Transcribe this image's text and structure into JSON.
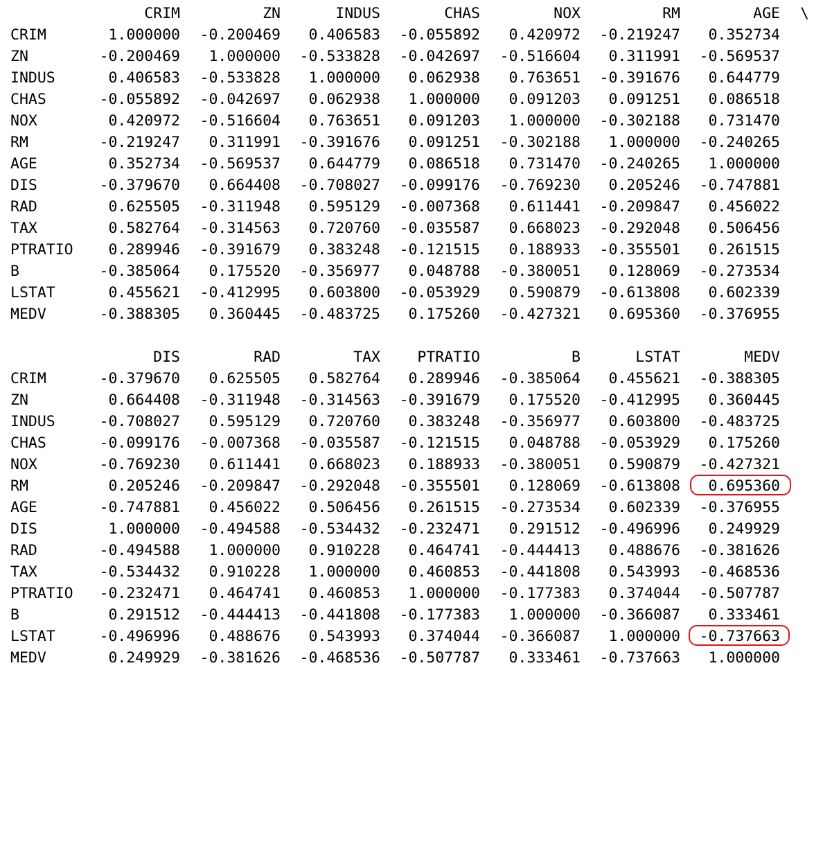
{
  "continuation_mark": "\\",
  "tables": [
    {
      "columns": [
        "CRIM",
        "ZN",
        "INDUS",
        "CHAS",
        "NOX",
        "RM",
        "AGE"
      ],
      "rows": [
        {
          "label": "CRIM",
          "values": [
            "1.000000",
            "-0.200469",
            "0.406583",
            "-0.055892",
            "0.420972",
            "-0.219247",
            "0.352734"
          ]
        },
        {
          "label": "ZN",
          "values": [
            "-0.200469",
            "1.000000",
            "-0.533828",
            "-0.042697",
            "-0.516604",
            "0.311991",
            "-0.569537"
          ]
        },
        {
          "label": "INDUS",
          "values": [
            "0.406583",
            "-0.533828",
            "1.000000",
            "0.062938",
            "0.763651",
            "-0.391676",
            "0.644779"
          ]
        },
        {
          "label": "CHAS",
          "values": [
            "-0.055892",
            "-0.042697",
            "0.062938",
            "1.000000",
            "0.091203",
            "0.091251",
            "0.086518"
          ]
        },
        {
          "label": "NOX",
          "values": [
            "0.420972",
            "-0.516604",
            "0.763651",
            "0.091203",
            "1.000000",
            "-0.302188",
            "0.731470"
          ]
        },
        {
          "label": "RM",
          "values": [
            "-0.219247",
            "0.311991",
            "-0.391676",
            "0.091251",
            "-0.302188",
            "1.000000",
            "-0.240265"
          ]
        },
        {
          "label": "AGE",
          "values": [
            "0.352734",
            "-0.569537",
            "0.644779",
            "0.086518",
            "0.731470",
            "-0.240265",
            "1.000000"
          ]
        },
        {
          "label": "DIS",
          "values": [
            "-0.379670",
            "0.664408",
            "-0.708027",
            "-0.099176",
            "-0.769230",
            "0.205246",
            "-0.747881"
          ]
        },
        {
          "label": "RAD",
          "values": [
            "0.625505",
            "-0.311948",
            "0.595129",
            "-0.007368",
            "0.611441",
            "-0.209847",
            "0.456022"
          ]
        },
        {
          "label": "TAX",
          "values": [
            "0.582764",
            "-0.314563",
            "0.720760",
            "-0.035587",
            "0.668023",
            "-0.292048",
            "0.506456"
          ]
        },
        {
          "label": "PTRATIO",
          "values": [
            "0.289946",
            "-0.391679",
            "0.383248",
            "-0.121515",
            "0.188933",
            "-0.355501",
            "0.261515"
          ]
        },
        {
          "label": "B",
          "values": [
            "-0.385064",
            "0.175520",
            "-0.356977",
            "0.048788",
            "-0.380051",
            "0.128069",
            "-0.273534"
          ]
        },
        {
          "label": "LSTAT",
          "values": [
            "0.455621",
            "-0.412995",
            "0.603800",
            "-0.053929",
            "0.590879",
            "-0.613808",
            "0.602339"
          ]
        },
        {
          "label": "MEDV",
          "values": [
            "-0.388305",
            "0.360445",
            "-0.483725",
            "0.175260",
            "-0.427321",
            "0.695360",
            "-0.376955"
          ]
        }
      ]
    },
    {
      "columns": [
        "DIS",
        "RAD",
        "TAX",
        "PTRATIO",
        "B",
        "LSTAT",
        "MEDV"
      ],
      "rows": [
        {
          "label": "CRIM",
          "values": [
            "-0.379670",
            "0.625505",
            "0.582764",
            "0.289946",
            "-0.385064",
            "0.455621",
            "-0.388305"
          ]
        },
        {
          "label": "ZN",
          "values": [
            "0.664408",
            "-0.311948",
            "-0.314563",
            "-0.391679",
            "0.175520",
            "-0.412995",
            "0.360445"
          ]
        },
        {
          "label": "INDUS",
          "values": [
            "-0.708027",
            "0.595129",
            "0.720760",
            "0.383248",
            "-0.356977",
            "0.603800",
            "-0.483725"
          ]
        },
        {
          "label": "CHAS",
          "values": [
            "-0.099176",
            "-0.007368",
            "-0.035587",
            "-0.121515",
            "0.048788",
            "-0.053929",
            "0.175260"
          ]
        },
        {
          "label": "NOX",
          "values": [
            "-0.769230",
            "0.611441",
            "0.668023",
            "0.188933",
            "-0.380051",
            "0.590879",
            "-0.427321"
          ]
        },
        {
          "label": "RM",
          "values": [
            "0.205246",
            "-0.209847",
            "-0.292048",
            "-0.355501",
            "0.128069",
            "-0.613808",
            "0.695360"
          ]
        },
        {
          "label": "AGE",
          "values": [
            "-0.747881",
            "0.456022",
            "0.506456",
            "0.261515",
            "-0.273534",
            "0.602339",
            "-0.376955"
          ]
        },
        {
          "label": "DIS",
          "values": [
            "1.000000",
            "-0.494588",
            "-0.534432",
            "-0.232471",
            "0.291512",
            "-0.496996",
            "0.249929"
          ]
        },
        {
          "label": "RAD",
          "values": [
            "-0.494588",
            "1.000000",
            "0.910228",
            "0.464741",
            "-0.444413",
            "0.488676",
            "-0.381626"
          ]
        },
        {
          "label": "TAX",
          "values": [
            "-0.534432",
            "0.910228",
            "1.000000",
            "0.460853",
            "-0.441808",
            "0.543993",
            "-0.468536"
          ]
        },
        {
          "label": "PTRATIO",
          "values": [
            "-0.232471",
            "0.464741",
            "0.460853",
            "1.000000",
            "-0.177383",
            "0.374044",
            "-0.507787"
          ]
        },
        {
          "label": "B",
          "values": [
            "0.291512",
            "-0.444413",
            "-0.441808",
            "-0.177383",
            "1.000000",
            "-0.366087",
            "0.333461"
          ]
        },
        {
          "label": "LSTAT",
          "values": [
            "-0.496996",
            "0.488676",
            "0.543993",
            "0.374044",
            "-0.366087",
            "1.000000",
            "-0.737663"
          ]
        },
        {
          "label": "MEDV",
          "values": [
            "0.249929",
            "-0.381626",
            "-0.468536",
            "-0.507787",
            "0.333461",
            "-0.737663",
            "1.000000"
          ]
        }
      ]
    }
  ],
  "highlights": [
    {
      "table": 1,
      "row": "RM",
      "column": "MEDV",
      "color": "#e0151b"
    },
    {
      "table": 1,
      "row": "LSTAT",
      "column": "MEDV",
      "color": "#e0151b"
    }
  ]
}
